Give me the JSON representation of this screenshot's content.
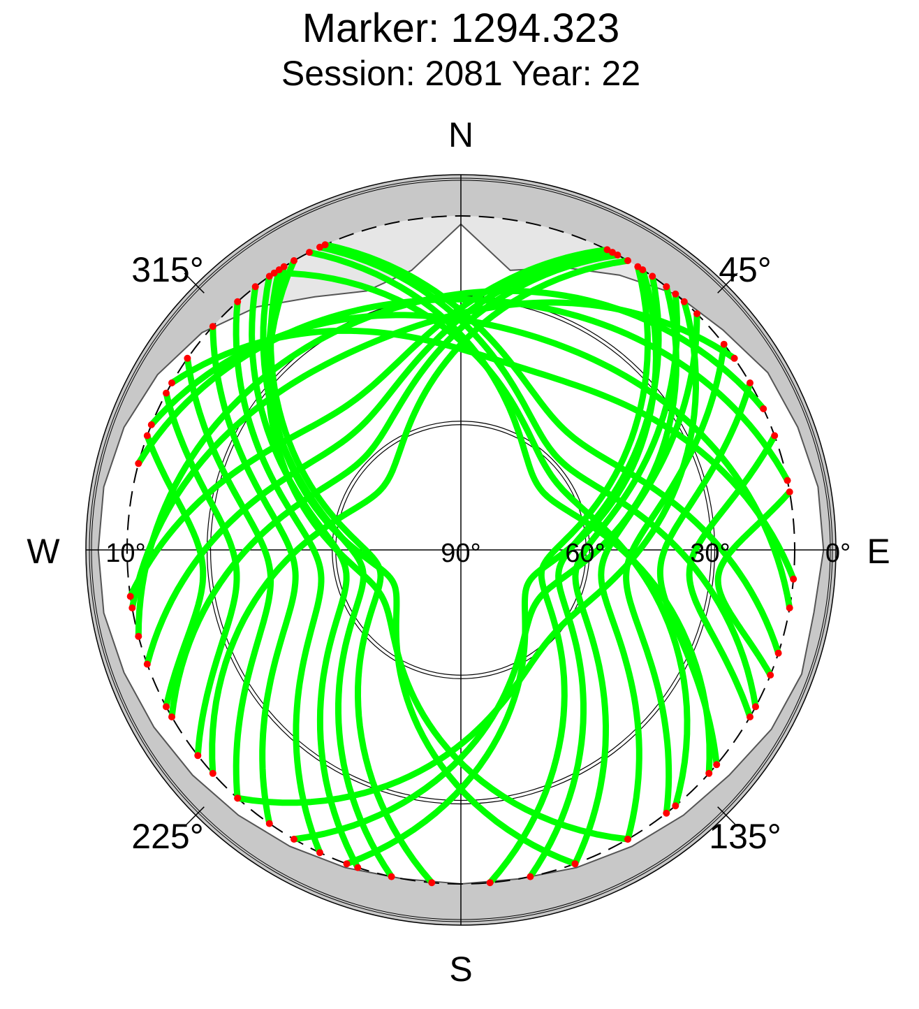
{
  "title": "Marker: 1294.323",
  "subtitle": "Session: 2081 Year: 22",
  "compass": {
    "north": "N",
    "south": "S",
    "east": "E",
    "west": "W"
  },
  "azimuth_labels": [
    "45°",
    "135°",
    "225°",
    "315°"
  ],
  "elevation_labels": [
    "0°",
    "30°",
    "60°",
    "90°",
    "10°"
  ],
  "colors": {
    "track": "#00ff00",
    "endpoint": "#ff0000",
    "mask_ring": "#c8c8c8",
    "obstruction": "#e6e6e6",
    "grid": "#000000"
  },
  "chart_data": {
    "type": "scatter",
    "projection": "polar-skyplot",
    "elevation_range": [
      0,
      90
    ],
    "elevation_rings": [
      0,
      10,
      30,
      60,
      90
    ],
    "azimuth_ticks": [
      0,
      45,
      90,
      135,
      180,
      225,
      270,
      315
    ],
    "elevation_mask_deg": 10,
    "horizon_mask": [
      {
        "az": 0,
        "el": 12
      },
      {
        "az": 10,
        "el": 22
      },
      {
        "az": 20,
        "el": 18
      },
      {
        "az": 30,
        "el": 14
      },
      {
        "az": 40,
        "el": 10
      },
      {
        "az": 50,
        "el": 8
      },
      {
        "az": 60,
        "el": 5
      },
      {
        "az": 70,
        "el": 4
      },
      {
        "az": 80,
        "el": 3
      },
      {
        "az": 90,
        "el": 3
      },
      {
        "az": 100,
        "el": 4
      },
      {
        "az": 110,
        "el": 3
      },
      {
        "az": 120,
        "el": 4
      },
      {
        "az": 130,
        "el": 6
      },
      {
        "az": 140,
        "el": 7
      },
      {
        "az": 150,
        "el": 8
      },
      {
        "az": 160,
        "el": 9
      },
      {
        "az": 170,
        "el": 10
      },
      {
        "az": 180,
        "el": 10
      },
      {
        "az": 190,
        "el": 10
      },
      {
        "az": 200,
        "el": 9
      },
      {
        "az": 210,
        "el": 8
      },
      {
        "az": 220,
        "el": 7
      },
      {
        "az": 230,
        "el": 6
      },
      {
        "az": 240,
        "el": 5
      },
      {
        "az": 250,
        "el": 4
      },
      {
        "az": 260,
        "el": 3
      },
      {
        "az": 270,
        "el": 3
      },
      {
        "az": 280,
        "el": 3
      },
      {
        "az": 290,
        "el": 4
      },
      {
        "az": 300,
        "el": 6
      },
      {
        "az": 310,
        "el": 9
      },
      {
        "az": 320,
        "el": 14
      },
      {
        "az": 330,
        "el": 20
      },
      {
        "az": 340,
        "el": 24
      },
      {
        "az": 350,
        "el": 22
      },
      {
        "az": 360,
        "el": 12
      }
    ],
    "tracks": [
      {
        "az_start": 32,
        "az_end": 175,
        "el_max": 70
      },
      {
        "az_start": 35,
        "az_end": 168,
        "el_max": 66
      },
      {
        "az_start": 40,
        "az_end": 160,
        "el_max": 62
      },
      {
        "az_start": 45,
        "az_end": 150,
        "el_max": 56
      },
      {
        "az_start": 52,
        "az_end": 142,
        "el_max": 50
      },
      {
        "az_start": 60,
        "az_end": 130,
        "el_max": 42
      },
      {
        "az_start": 70,
        "az_end": 120,
        "el_max": 35
      },
      {
        "az_start": 80,
        "az_end": 112,
        "el_max": 28
      },
      {
        "az_start": 33,
        "az_end": 200,
        "el_max": 72
      },
      {
        "az_start": 38,
        "az_end": 210,
        "el_max": 68
      },
      {
        "az_start": 42,
        "az_end": 222,
        "el_max": 60
      },
      {
        "az_start": 30,
        "az_end": 228,
        "el_max": 66
      },
      {
        "az_start": 28,
        "az_end": 240,
        "el_max": 58
      },
      {
        "az_start": 27,
        "az_end": 250,
        "el_max": 52
      },
      {
        "az_start": 26,
        "az_end": 262,
        "el_max": 46
      },
      {
        "az_start": 55,
        "az_end": 260,
        "el_max": 36
      },
      {
        "az_start": 65,
        "az_end": 255,
        "el_max": 30
      },
      {
        "az_start": 327,
        "az_end": 185,
        "el_max": 70
      },
      {
        "az_start": 325,
        "az_end": 192,
        "el_max": 66
      },
      {
        "az_start": 322,
        "az_end": 198,
        "el_max": 62
      },
      {
        "az_start": 318,
        "az_end": 205,
        "el_max": 56
      },
      {
        "az_start": 312,
        "az_end": 215,
        "el_max": 50
      },
      {
        "az_start": 305,
        "az_end": 222,
        "el_max": 44
      },
      {
        "az_start": 298,
        "az_end": 232,
        "el_max": 36
      },
      {
        "az_start": 290,
        "az_end": 242,
        "el_max": 28
      },
      {
        "az_start": 328,
        "az_end": 160,
        "el_max": 72
      },
      {
        "az_start": 330,
        "az_end": 150,
        "el_max": 68
      },
      {
        "az_start": 326,
        "az_end": 140,
        "el_max": 62
      },
      {
        "az_start": 333,
        "az_end": 132,
        "el_max": 66
      },
      {
        "az_start": 335,
        "az_end": 118,
        "el_max": 58
      },
      {
        "az_start": 336,
        "az_end": 108,
        "el_max": 52
      },
      {
        "az_start": 300,
        "az_end": 95,
        "el_max": 44
      },
      {
        "az_start": 292,
        "az_end": 100,
        "el_max": 36
      },
      {
        "az_start": 285,
        "az_end": 78,
        "el_max": 30
      }
    ]
  }
}
